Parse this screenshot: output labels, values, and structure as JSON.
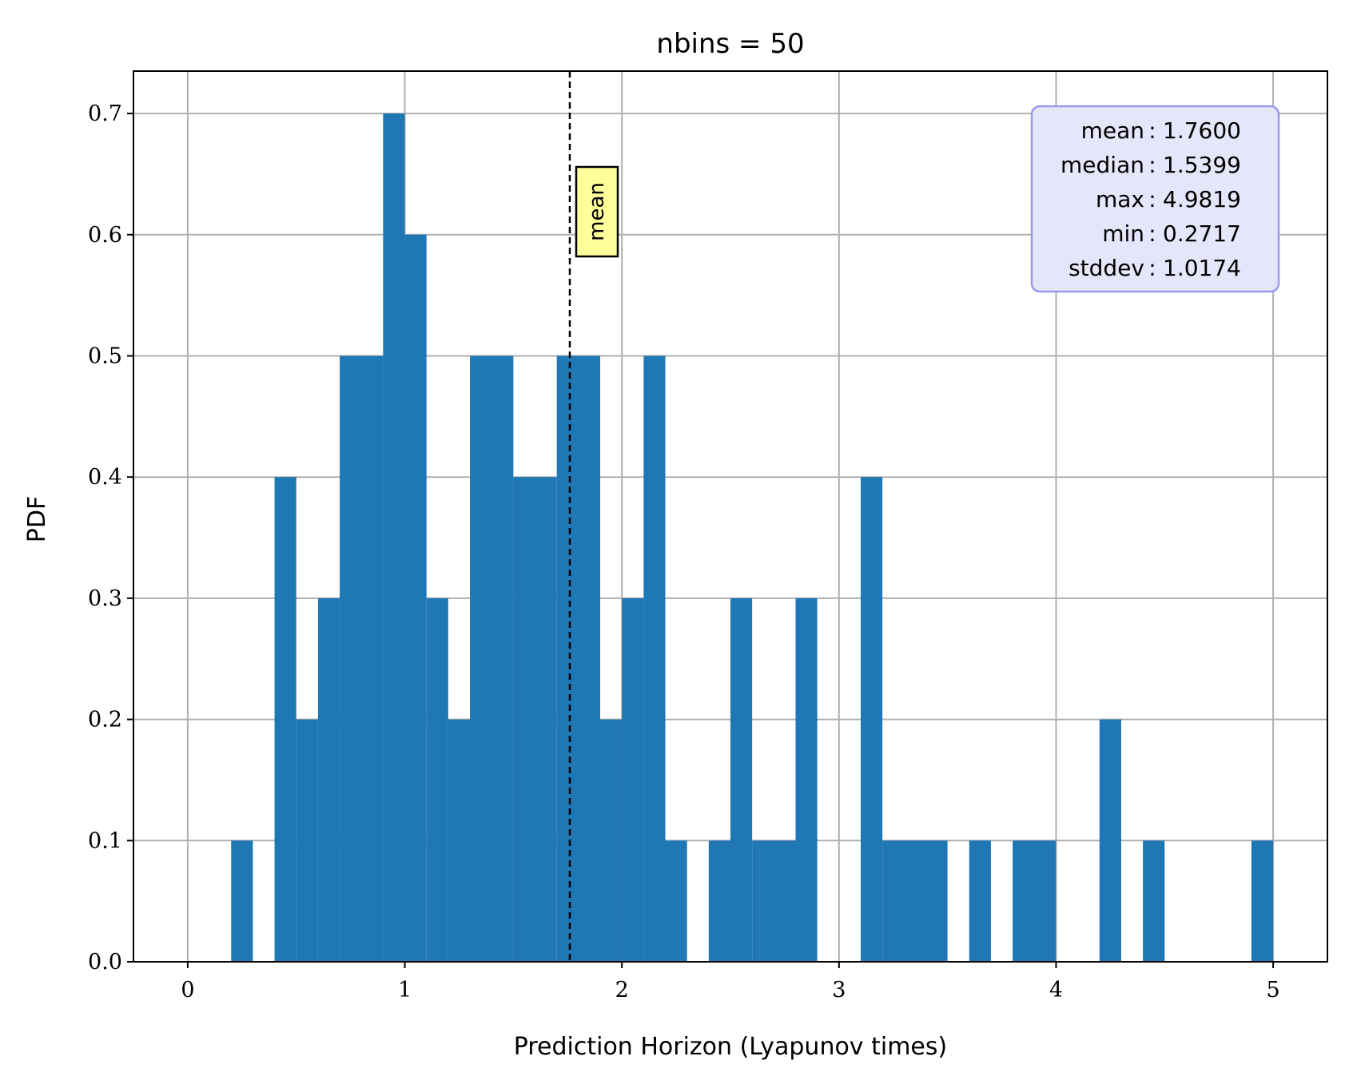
{
  "chart_data": {
    "type": "bar",
    "title": "nbins = 50",
    "xlabel": "Prediction Horizon (Lyapunov times)",
    "ylabel": "PDF",
    "xlim": [
      -0.25,
      5.25
    ],
    "ylim": [
      0,
      0.735
    ],
    "xticks": [
      0,
      1,
      2,
      3,
      4,
      5
    ],
    "yticks": [
      0.0,
      0.1,
      0.2,
      0.3,
      0.4,
      0.5,
      0.6,
      0.7
    ],
    "xtick_labels": [
      "0",
      "1",
      "2",
      "3",
      "4",
      "5"
    ],
    "ytick_labels": [
      "0.0",
      "0.1",
      "0.2",
      "0.3",
      "0.4",
      "0.5",
      "0.6",
      "0.7"
    ],
    "grid": true,
    "bar_color": "#1f77b4",
    "bins": [
      {
        "x0": 0.2,
        "x1": 0.3,
        "value": 0.1
      },
      {
        "x0": 0.4,
        "x1": 0.5,
        "value": 0.4
      },
      {
        "x0": 0.5,
        "x1": 0.6,
        "value": 0.2
      },
      {
        "x0": 0.6,
        "x1": 0.7,
        "value": 0.3
      },
      {
        "x0": 0.7,
        "x1": 0.9,
        "value": 0.5
      },
      {
        "x0": 0.9,
        "x1": 1.0,
        "value": 0.7
      },
      {
        "x0": 1.0,
        "x1": 1.1,
        "value": 0.6
      },
      {
        "x0": 1.1,
        "x1": 1.2,
        "value": 0.3
      },
      {
        "x0": 1.2,
        "x1": 1.3,
        "value": 0.2
      },
      {
        "x0": 1.3,
        "x1": 1.5,
        "value": 0.5
      },
      {
        "x0": 1.5,
        "x1": 1.7,
        "value": 0.4
      },
      {
        "x0": 1.7,
        "x1": 1.9,
        "value": 0.5
      },
      {
        "x0": 1.9,
        "x1": 2.0,
        "value": 0.2
      },
      {
        "x0": 2.0,
        "x1": 2.1,
        "value": 0.3
      },
      {
        "x0": 2.1,
        "x1": 2.2,
        "value": 0.5
      },
      {
        "x0": 2.2,
        "x1": 2.3,
        "value": 0.1
      },
      {
        "x0": 2.4,
        "x1": 2.5,
        "value": 0.1
      },
      {
        "x0": 2.5,
        "x1": 2.6,
        "value": 0.3
      },
      {
        "x0": 2.6,
        "x1": 2.8,
        "value": 0.1
      },
      {
        "x0": 2.8,
        "x1": 2.9,
        "value": 0.3
      },
      {
        "x0": 3.1,
        "x1": 3.2,
        "value": 0.4
      },
      {
        "x0": 3.2,
        "x1": 3.5,
        "value": 0.1
      },
      {
        "x0": 3.6,
        "x1": 3.7,
        "value": 0.1
      },
      {
        "x0": 3.8,
        "x1": 4.0,
        "value": 0.1
      },
      {
        "x0": 4.2,
        "x1": 4.3,
        "value": 0.2
      },
      {
        "x0": 4.4,
        "x1": 4.5,
        "value": 0.1
      },
      {
        "x0": 4.9,
        "x1": 5.0,
        "value": 0.1
      }
    ],
    "mean_line": {
      "x": 1.76,
      "label": "mean",
      "label_fill": "#ffff99"
    },
    "stats_box": {
      "fill": "#e6e6fa",
      "border": "#9999ee",
      "placement": "top-right",
      "rows": [
        {
          "name": "mean",
          "sep": ":",
          "value": "1.7600"
        },
        {
          "name": "median",
          "sep": ":",
          "value": "1.5399"
        },
        {
          "name": "max",
          "sep": ":",
          "value": "4.9819"
        },
        {
          "name": "min",
          "sep": ":",
          "value": "0.2717"
        },
        {
          "name": "stddev",
          "sep": ":",
          "value": "1.0174"
        }
      ]
    }
  }
}
